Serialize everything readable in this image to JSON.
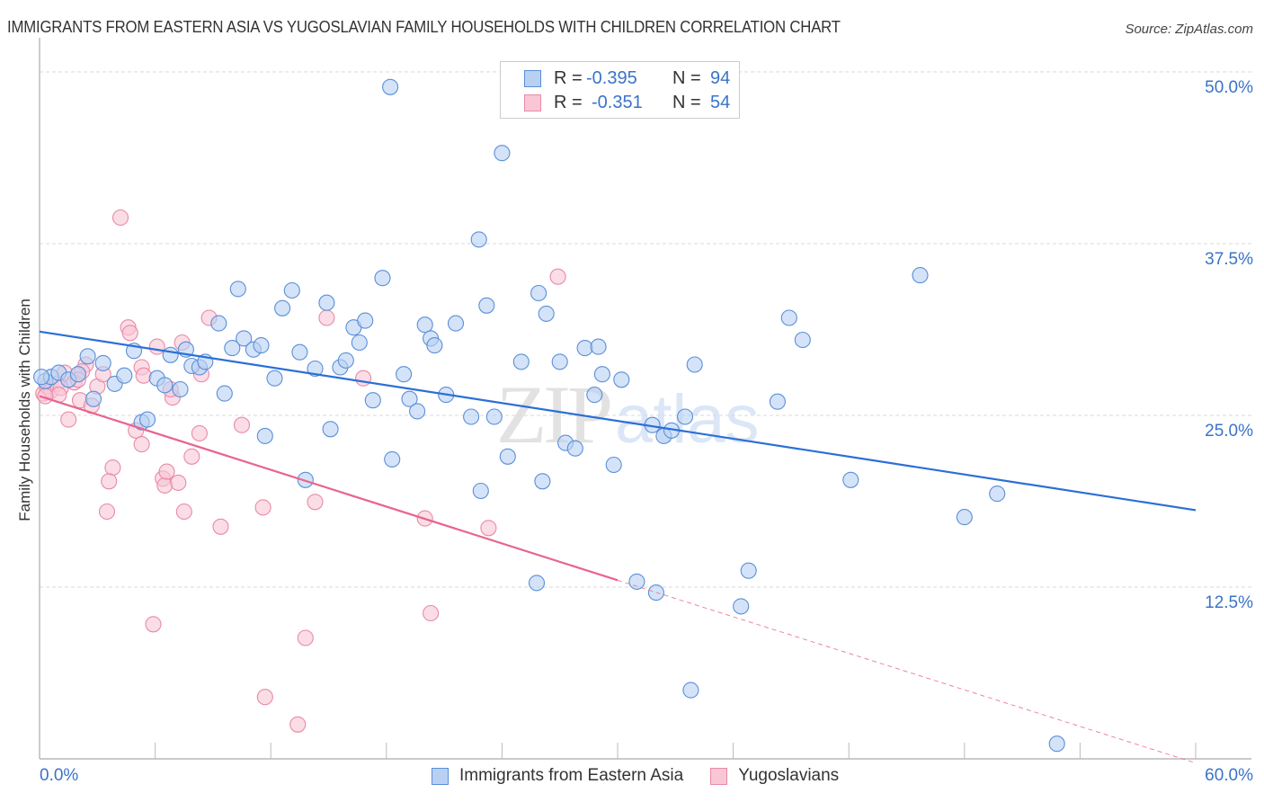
{
  "header": {
    "title": "IMMIGRANTS FROM EASTERN ASIA VS YUGOSLAVIAN FAMILY HOUSEHOLDS WITH CHILDREN CORRELATION CHART",
    "source": "Source: ZipAtlas.com"
  },
  "watermark": {
    "zip": "ZIP",
    "atlas": "atlas"
  },
  "legend": {
    "rows": [
      {
        "r_label": "R =",
        "r_value": "-0.395",
        "n_label": "N =",
        "n_value": "94"
      },
      {
        "r_label": "R =",
        "r_value": "-0.351",
        "n_label": "N =",
        "n_value": "54"
      }
    ]
  },
  "colors": {
    "blue_fill": "#b8d1f3",
    "blue_stroke": "#5a8fd8",
    "blue_line": "#2b6fd6",
    "pink_fill": "#f9c6d6",
    "pink_stroke": "#e88aa8",
    "pink_line": "#e8648e",
    "axis_text": "#3a73c8"
  },
  "chart_data": {
    "type": "scatter",
    "title": "IMMIGRANTS FROM EASTERN ASIA VS YUGOSLAVIAN FAMILY HOUSEHOLDS WITH CHILDREN CORRELATION CHART",
    "xlabel": "",
    "ylabel": "Family Households with Children",
    "xlim": [
      0,
      60
    ],
    "ylim": [
      0,
      51
    ],
    "x_tick_labels": [
      "0.0%",
      "60.0%"
    ],
    "y_ticks": [
      12.5,
      25.0,
      37.5,
      50.0
    ],
    "y_tick_labels": [
      "12.5%",
      "25.0%",
      "37.5%",
      "50.0%"
    ],
    "grid": true,
    "legend_position": "bottom-center",
    "series": [
      {
        "name": "Immigrants from Eastern Asia",
        "R": -0.395,
        "N": 94,
        "trend": {
          "x": [
            0,
            60
          ],
          "y": [
            31.1,
            18.1
          ],
          "style": "solid"
        },
        "points": [
          [
            0.3,
            27.5
          ],
          [
            0.6,
            27.8
          ],
          [
            1.0,
            28.1
          ],
          [
            1.5,
            27.6
          ],
          [
            2.0,
            28.0
          ],
          [
            2.5,
            29.3
          ],
          [
            2.8,
            26.2
          ],
          [
            3.3,
            28.8
          ],
          [
            3.9,
            27.3
          ],
          [
            4.4,
            27.9
          ],
          [
            4.9,
            29.7
          ],
          [
            5.3,
            24.5
          ],
          [
            5.6,
            24.7
          ],
          [
            6.1,
            27.7
          ],
          [
            6.5,
            27.2
          ],
          [
            6.8,
            29.4
          ],
          [
            7.3,
            26.9
          ],
          [
            7.6,
            29.8
          ],
          [
            7.9,
            28.6
          ],
          [
            8.3,
            28.5
          ],
          [
            8.6,
            28.9
          ],
          [
            9.3,
            31.7
          ],
          [
            9.6,
            26.6
          ],
          [
            10.0,
            29.9
          ],
          [
            10.3,
            34.2
          ],
          [
            10.6,
            30.6
          ],
          [
            11.1,
            29.8
          ],
          [
            11.5,
            30.1
          ],
          [
            11.7,
            23.5
          ],
          [
            12.2,
            27.7
          ],
          [
            12.6,
            32.8
          ],
          [
            13.1,
            34.1
          ],
          [
            13.5,
            29.6
          ],
          [
            13.8,
            20.3
          ],
          [
            14.3,
            28.4
          ],
          [
            14.9,
            33.2
          ],
          [
            15.1,
            24.0
          ],
          [
            15.6,
            28.5
          ],
          [
            15.9,
            29.0
          ],
          [
            16.3,
            31.4
          ],
          [
            16.6,
            30.3
          ],
          [
            16.9,
            31.9
          ],
          [
            17.3,
            26.1
          ],
          [
            17.8,
            35.0
          ],
          [
            18.3,
            21.8
          ],
          [
            18.9,
            28.0
          ],
          [
            19.2,
            26.2
          ],
          [
            19.6,
            25.3
          ],
          [
            20.0,
            31.6
          ],
          [
            20.3,
            30.6
          ],
          [
            20.5,
            30.1
          ],
          [
            21.1,
            26.5
          ],
          [
            21.6,
            31.7
          ],
          [
            22.4,
            24.9
          ],
          [
            22.8,
            37.8
          ],
          [
            22.9,
            19.5
          ],
          [
            23.2,
            33.0
          ],
          [
            23.6,
            24.9
          ],
          [
            24.0,
            44.1
          ],
          [
            24.3,
            22.0
          ],
          [
            25.0,
            28.9
          ],
          [
            25.8,
            12.8
          ],
          [
            25.9,
            33.9
          ],
          [
            26.1,
            20.2
          ],
          [
            26.3,
            32.4
          ],
          [
            27.0,
            28.9
          ],
          [
            27.3,
            23.0
          ],
          [
            27.8,
            22.6
          ],
          [
            28.3,
            29.9
          ],
          [
            28.8,
            26.5
          ],
          [
            29.0,
            30.0
          ],
          [
            29.2,
            28.0
          ],
          [
            29.8,
            21.4
          ],
          [
            30.2,
            27.6
          ],
          [
            31.0,
            12.9
          ],
          [
            31.8,
            24.3
          ],
          [
            32.0,
            12.1
          ],
          [
            32.4,
            23.5
          ],
          [
            32.8,
            23.9
          ],
          [
            33.5,
            24.9
          ],
          [
            33.8,
            5.0
          ],
          [
            34.0,
            28.7
          ],
          [
            36.8,
            13.7
          ],
          [
            36.4,
            11.1
          ],
          [
            38.3,
            26.0
          ],
          [
            38.9,
            32.1
          ],
          [
            39.6,
            30.5
          ],
          [
            42.1,
            20.3
          ],
          [
            18.2,
            48.9
          ],
          [
            45.7,
            35.2
          ],
          [
            48.0,
            17.6
          ],
          [
            49.7,
            19.3
          ],
          [
            52.8,
            1.1
          ],
          [
            0.1,
            27.8
          ]
        ]
      },
      {
        "name": "Yugoslavians",
        "R": -0.351,
        "N": 54,
        "trend": {
          "x": [
            0,
            30
          ],
          "y": [
            26.4,
            13.0
          ],
          "style": "solid",
          "extended": {
            "x": [
              30,
              60
            ],
            "y": [
              13.0,
              -0.3
            ],
            "style": "dashed"
          }
        },
        "points": [
          [
            0.2,
            26.6
          ],
          [
            0.4,
            27.1
          ],
          [
            0.6,
            26.8
          ],
          [
            0.9,
            27.3
          ],
          [
            1.1,
            27.0
          ],
          [
            1.3,
            28.1
          ],
          [
            1.5,
            24.7
          ],
          [
            1.8,
            27.4
          ],
          [
            2.1,
            26.1
          ],
          [
            2.4,
            28.7
          ],
          [
            2.7,
            25.7
          ],
          [
            3.0,
            27.1
          ],
          [
            3.3,
            28.0
          ],
          [
            3.5,
            18.0
          ],
          [
            3.8,
            21.2
          ],
          [
            3.6,
            20.2
          ],
          [
            4.2,
            39.4
          ],
          [
            4.6,
            31.4
          ],
          [
            4.7,
            31.0
          ],
          [
            5.0,
            23.9
          ],
          [
            5.3,
            28.5
          ],
          [
            5.3,
            22.9
          ],
          [
            5.4,
            27.9
          ],
          [
            5.9,
            9.8
          ],
          [
            6.1,
            30.0
          ],
          [
            6.4,
            20.4
          ],
          [
            6.5,
            19.9
          ],
          [
            6.6,
            20.9
          ],
          [
            6.9,
            26.3
          ],
          [
            7.2,
            20.1
          ],
          [
            7.5,
            18.0
          ],
          [
            7.4,
            30.3
          ],
          [
            7.9,
            22.0
          ],
          [
            8.3,
            23.7
          ],
          [
            8.4,
            28.0
          ],
          [
            8.8,
            32.1
          ],
          [
            9.4,
            16.9
          ],
          [
            10.5,
            24.3
          ],
          [
            11.6,
            18.3
          ],
          [
            11.7,
            4.5
          ],
          [
            13.4,
            2.5
          ],
          [
            13.8,
            8.8
          ],
          [
            14.3,
            18.7
          ],
          [
            14.9,
            32.1
          ],
          [
            16.8,
            27.7
          ],
          [
            20.0,
            17.5
          ],
          [
            20.3,
            10.6
          ],
          [
            23.3,
            16.8
          ],
          [
            26.9,
            35.1
          ],
          [
            1.0,
            26.5
          ],
          [
            2.2,
            28.2
          ],
          [
            2.0,
            27.6
          ],
          [
            6.8,
            26.9
          ],
          [
            0.3,
            26.4
          ]
        ]
      }
    ]
  },
  "bottom_legend": {
    "items": [
      {
        "label": "Immigrants from Eastern Asia"
      },
      {
        "label": "Yugoslavians"
      }
    ]
  },
  "axes": {
    "x_min_label": "0.0%",
    "x_max_label": "60.0%",
    "y_labels": [
      "50.0%",
      "37.5%",
      "25.0%",
      "12.5%"
    ],
    "ylabel": "Family Households with Children"
  }
}
